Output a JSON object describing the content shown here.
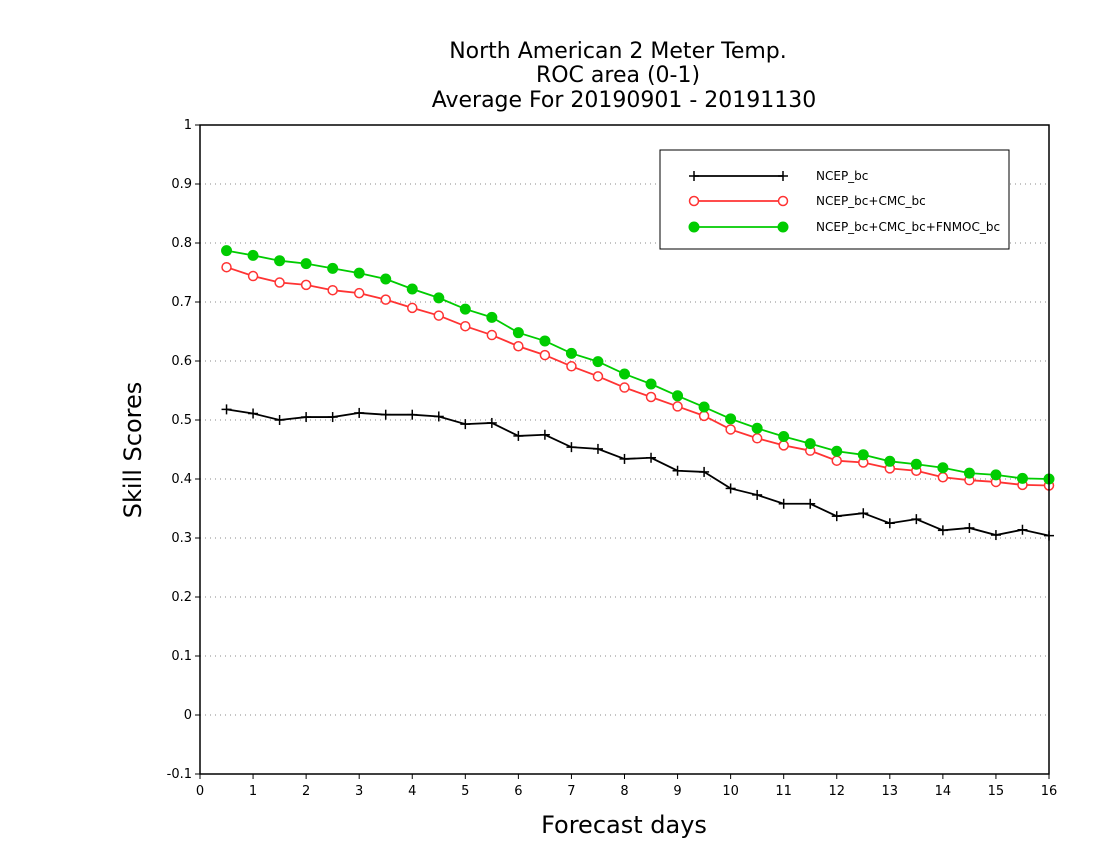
{
  "chart_data": {
    "type": "line",
    "title": "North American 2 Meter Temp.",
    "subtitle": "ROC area (0-1)",
    "subtitle2": "Average For 20190901 - 20191130",
    "xlabel": "Forecast days",
    "ylabel": "Skill Scores",
    "xlim": [
      0,
      16
    ],
    "ylim": [
      -0.1,
      1
    ],
    "x_ticks": [
      "0",
      "1",
      "2",
      "3",
      "4",
      "5",
      "6",
      "7",
      "8",
      "9",
      "10",
      "11",
      "12",
      "13",
      "14",
      "15",
      "16"
    ],
    "y_ticks": [
      "1",
      "0.9",
      "0.8",
      "0.7",
      "0.6",
      "0.5",
      "0.4",
      "0.3",
      "0.2",
      "0.1",
      "0",
      "-0.1"
    ],
    "y_tick_values": [
      1,
      0.9,
      0.8,
      0.7,
      0.6,
      0.5,
      0.4,
      0.3,
      0.2,
      0.1,
      0,
      -0.1
    ],
    "grid": "horizontal dotted",
    "legend_position": "top-right",
    "x": [
      0.5,
      1,
      1.5,
      2,
      2.5,
      3,
      3.5,
      4,
      4.5,
      5,
      5.5,
      6,
      6.5,
      7,
      7.5,
      8,
      8.5,
      9,
      9.5,
      10,
      10.5,
      11,
      11.5,
      12,
      12.5,
      13,
      13.5,
      14,
      14.5,
      15,
      15.5,
      16
    ],
    "series": [
      {
        "name": "NCEP_bc",
        "color": "#000000",
        "marker": "plus",
        "values": [
          0.518,
          0.511,
          0.5,
          0.505,
          0.505,
          0.512,
          0.509,
          0.509,
          0.506,
          0.493,
          0.495,
          0.473,
          0.475,
          0.454,
          0.451,
          0.434,
          0.436,
          0.414,
          0.412,
          0.384,
          0.373,
          0.358,
          0.358,
          0.337,
          0.342,
          0.325,
          0.332,
          0.313,
          0.317,
          0.305,
          0.314,
          0.304
        ]
      },
      {
        "name": "NCEP_bc+CMC_bc",
        "color": "#ff3333",
        "marker": "open-circle",
        "values": [
          0.759,
          0.744,
          0.733,
          0.729,
          0.72,
          0.715,
          0.704,
          0.69,
          0.677,
          0.659,
          0.644,
          0.625,
          0.61,
          0.591,
          0.574,
          0.555,
          0.539,
          0.523,
          0.507,
          0.484,
          0.469,
          0.457,
          0.448,
          0.431,
          0.428,
          0.418,
          0.414,
          0.403,
          0.398,
          0.395,
          0.39,
          0.389
        ]
      },
      {
        "name": "NCEP_bc+CMC_bc+FNMOC_bc",
        "color": "#00cc00",
        "marker": "filled-circle",
        "values": [
          0.787,
          0.779,
          0.77,
          0.765,
          0.757,
          0.749,
          0.739,
          0.722,
          0.707,
          0.688,
          0.674,
          0.648,
          0.634,
          0.613,
          0.599,
          0.578,
          0.561,
          0.541,
          0.522,
          0.502,
          0.486,
          0.472,
          0.46,
          0.447,
          0.441,
          0.43,
          0.425,
          0.419,
          0.41,
          0.407,
          0.401,
          0.4
        ]
      }
    ]
  }
}
